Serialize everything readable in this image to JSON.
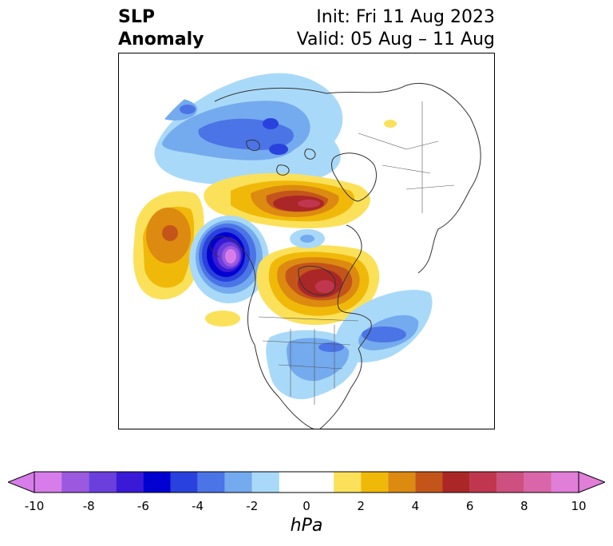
{
  "title": {
    "left_line1": "SLP",
    "left_line2": "Anomaly",
    "right_line1": "Init: Fri 11 Aug 2023",
    "right_line2": "Valid: 05 Aug – 11 Aug"
  },
  "map": {
    "projection": "north-polar-stereographic",
    "field": "sea-level-pressure-anomaly",
    "features": [
      {
        "type": "high",
        "region": "north-pacific-west",
        "max_hpa": 6
      },
      {
        "type": "low",
        "region": "gulf-of-alaska",
        "min_hpa": -10
      },
      {
        "type": "high",
        "region": "hudson-bay",
        "max_hpa": 8
      },
      {
        "type": "high",
        "region": "greenland-arctic",
        "max_hpa": 8
      },
      {
        "type": "low",
        "region": "north-atlantic",
        "min_hpa": -5
      },
      {
        "type": "low",
        "region": "eastern-united-states",
        "min_hpa": -3
      },
      {
        "type": "low",
        "region": "arctic-siberia",
        "min_hpa": -4
      }
    ]
  },
  "colorbar": {
    "units": "hPa",
    "extend": "both",
    "tick_labels": [
      "-10",
      "-8",
      "-6",
      "-4",
      "-2",
      "0",
      "2",
      "4",
      "6",
      "8",
      "10"
    ],
    "bins": [
      {
        "range": [
          -10,
          -9
        ],
        "color": "#d77de9"
      },
      {
        "range": [
          -9,
          -8
        ],
        "color": "#9b59e0"
      },
      {
        "range": [
          -8,
          -7
        ],
        "color": "#6a3fdc"
      },
      {
        "range": [
          -7,
          -6
        ],
        "color": "#3a1ad6"
      },
      {
        "range": [
          -6,
          -5
        ],
        "color": "#0000d0"
      },
      {
        "range": [
          -5,
          -4
        ],
        "color": "#2a42dd"
      },
      {
        "range": [
          -4,
          -3
        ],
        "color": "#4b74e6"
      },
      {
        "range": [
          -3,
          -2
        ],
        "color": "#74aaee"
      },
      {
        "range": [
          -2,
          -1
        ],
        "color": "#a9d9f8"
      },
      {
        "range": [
          -1,
          1
        ],
        "color": "#ffffff"
      },
      {
        "range": [
          1,
          2
        ],
        "color": "#fbe15a"
      },
      {
        "range": [
          2,
          3
        ],
        "color": "#f0b90a"
      },
      {
        "range": [
          3,
          4
        ],
        "color": "#dd8a10"
      },
      {
        "range": [
          4,
          5
        ],
        "color": "#c4551a"
      },
      {
        "range": [
          5,
          6
        ],
        "color": "#ab2727"
      },
      {
        "range": [
          6,
          7
        ],
        "color": "#c1364f"
      },
      {
        "range": [
          7,
          8
        ],
        "color": "#cd5080"
      },
      {
        "range": [
          8,
          9
        ],
        "color": "#d866a8"
      },
      {
        "range": [
          9,
          10
        ],
        "color": "#e07ed8"
      }
    ],
    "under_color": "#d77de9",
    "over_color": "#e07ed8"
  }
}
